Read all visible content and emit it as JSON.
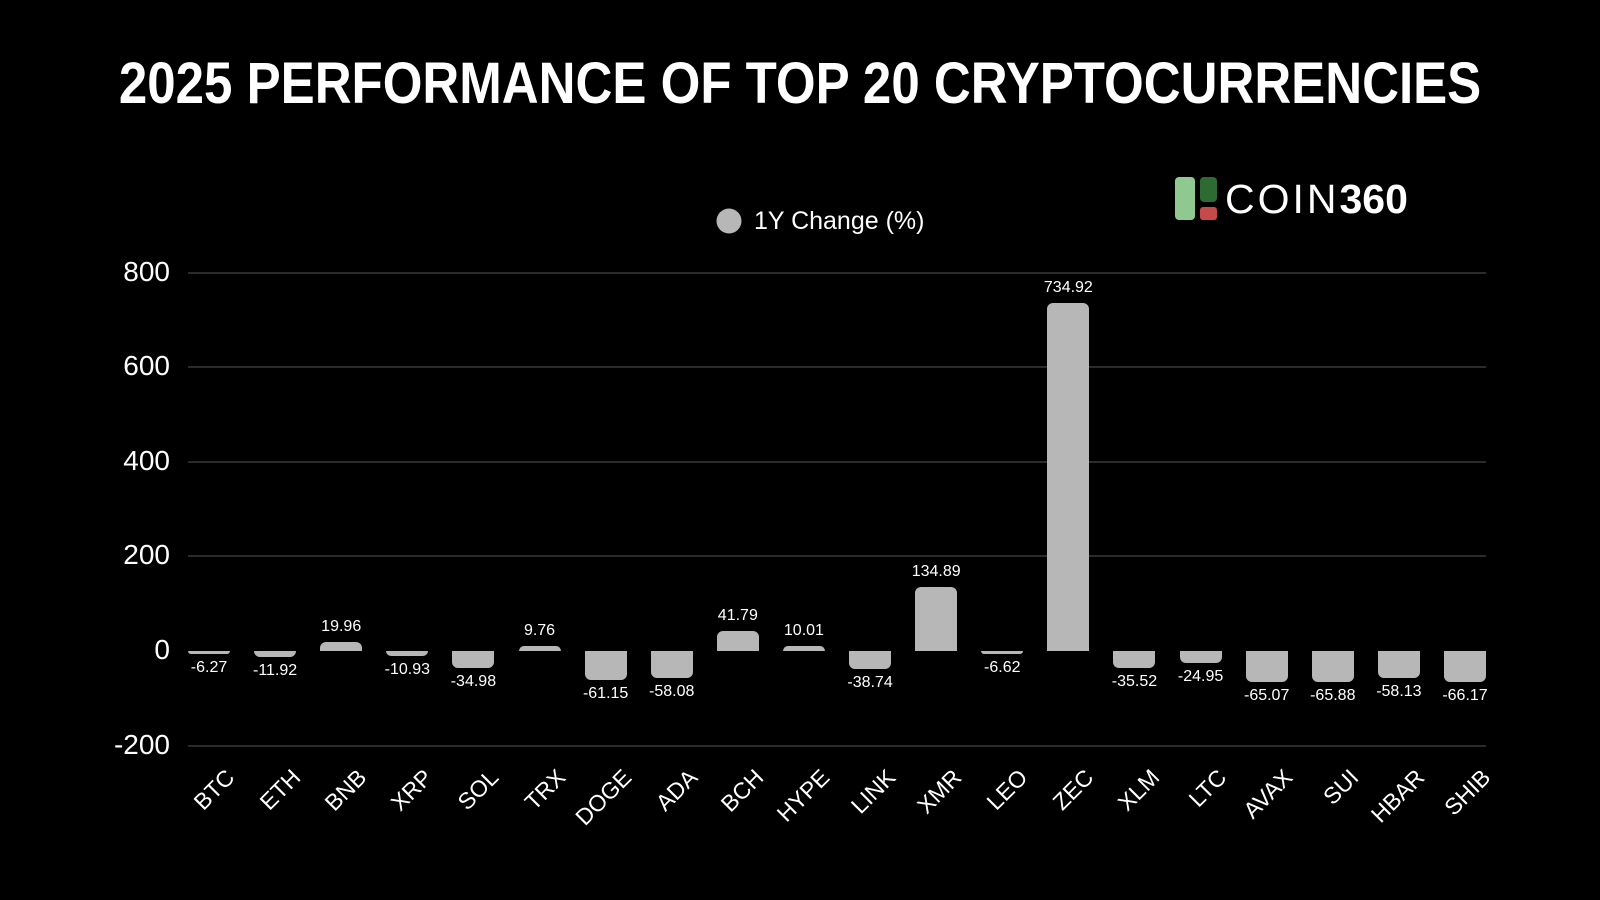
{
  "title": "2025 PERFORMANCE OF TOP 20 CRYPTOCURRENCIES",
  "legend": {
    "label": "1Y Change (%)"
  },
  "logo": {
    "text_regular": "COIN",
    "text_bold": "360"
  },
  "colors": {
    "background": "#000000",
    "bar": "#b7b7b7",
    "gridline": "#2b2b2b",
    "text": "#ffffff",
    "legend_dot": "#b7b7b7",
    "logo_light_green": "#8fc98f",
    "logo_dark_green": "#2e6b33",
    "logo_red": "#c74a4a"
  },
  "chart_data": {
    "type": "bar",
    "title": "2025 PERFORMANCE OF TOP 20 CRYPTOCURRENCIES",
    "series_name": "1Y Change (%)",
    "categories": [
      "BTC",
      "ETH",
      "BNB",
      "XRP",
      "SOL",
      "TRX",
      "DOGE",
      "ADA",
      "BCH",
      "HYPE",
      "LINK",
      "XMR",
      "LEO",
      "ZEC",
      "XLM",
      "LTC",
      "AVAX",
      "SUI",
      "HBAR",
      "SHIB"
    ],
    "values": [
      -6.27,
      -11.92,
      19.96,
      -10.93,
      -34.98,
      9.76,
      -61.15,
      -58.08,
      41.79,
      10.01,
      -38.74,
      134.89,
      -6.62,
      734.92,
      -35.52,
      -24.95,
      -65.07,
      -65.88,
      -58.13,
      -66.17
    ],
    "yticks": [
      800,
      600,
      400,
      200,
      0,
      -200
    ],
    "ylim": [
      -200,
      800
    ],
    "grid": true,
    "value_labels": true,
    "legend_position": "top-center",
    "xlabel": "",
    "ylabel": ""
  }
}
